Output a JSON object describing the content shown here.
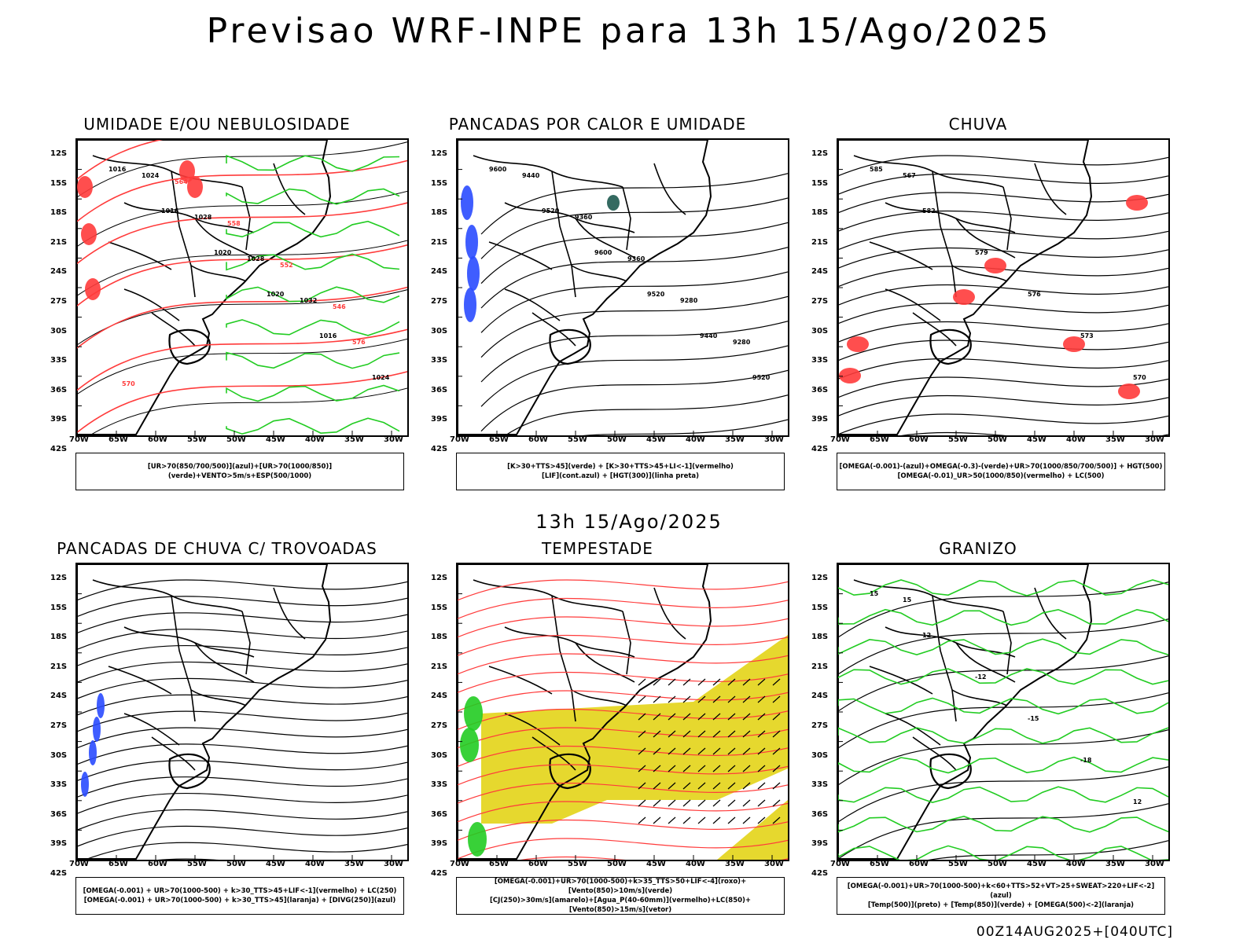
{
  "header": {
    "title": "Previsao WRF-INPE  para 13h 15/Ago/2025"
  },
  "mid_label": "13h 15/Ago/2025",
  "run_info": "00Z14AUG2025+[040UTC]",
  "axes": {
    "lat_labels": [
      "12S",
      "15S",
      "18S",
      "21S",
      "24S",
      "27S",
      "30S",
      "33S",
      "36S",
      "39S",
      "42S"
    ],
    "lon_labels": [
      "70W",
      "65W",
      "60W",
      "55W",
      "50W",
      "45W",
      "40W",
      "35W",
      "30W"
    ]
  },
  "colors": {
    "black": "#000000",
    "red": "#ff3b3b",
    "green": "#22cc22",
    "blue": "#2a4bff",
    "yellow": "#e6d82e",
    "teal": "#1e5a50"
  },
  "panels": [
    {
      "title": "UMIDADE E/OU NEBULOSIDADE",
      "legend": [
        "[UR>70(850/700/500)](azul)+[UR>70(1000/850)](verde)+VENTO>5m/s+ESP(500/1000)"
      ],
      "labels": [
        "1016",
        "1016",
        "1020",
        "1020",
        "1016",
        "1024",
        "1024",
        "1028",
        "1028",
        "1032",
        "576",
        "570",
        "564",
        "558",
        "552",
        "546"
      ]
    },
    {
      "title": "PANCADAS POR CALOR E UMIDADE",
      "legend": [
        "[K>30+TTS>45](verde) + [K>30+TTS>45+LI<-1](vermelho)",
        "[LIF](cont.azul) + [HGT(300)](linha preta)"
      ],
      "labels": [
        "9600",
        "9520",
        "9600",
        "9520",
        "9440",
        "9520",
        "9440",
        "9360",
        "9360",
        "9280",
        "9280"
      ]
    },
    {
      "title": "CHUVA",
      "legend": [
        "[OMEGA(-0.001)-(azul)+OMEGA(-0.3)-(verde)+UR>70(1000/850/700/500)] + HGT(500)",
        "[OMEGA(-0.01)_UR>50(1000/850)(vermelho) + LC(500)"
      ],
      "labels": [
        "585",
        "582",
        "579",
        "576",
        "573",
        "570",
        "567"
      ]
    },
    {
      "title": "PANCADAS DE CHUVA C/ TROVOADAS",
      "legend": [
        "[OMEGA(-0.001) + UR>70(1000-500) + k>30_TTS>45+LIF<-1](vermelho) + LC(250)",
        "[OMEGA(-0.001) + UR>70(1000-500) + k>30_TTS>45](laranja) + [DIVG(250)](azul)"
      ],
      "labels": []
    },
    {
      "title": "TEMPESTADE",
      "legend": [
        "[OMEGA(-0.001)+UR>70(1000-500)+k>35_TTS>50+LIF<-4](roxo)+[Vento(850)>10m/s](verde)",
        "[CJ(250)>30m/s](amarelo)+[Agua_P(40-60mm)](vermelho)+LC(850)+[Vento(850)>15m/s](vetor)"
      ],
      "labels": []
    },
    {
      "title": "GRANIZO",
      "legend": [
        "[OMEGA(-0.001)+UR>70(1000-500)+k<60+TTS>52+VT>25+SWEAT>220+LIF<-2](azul)",
        "[Temp(500)](preto) + [Temp(850)](verde) + [OMEGA(500)<-2](laranja)"
      ],
      "labels": [
        "15",
        "12",
        "-12",
        "-15",
        "-18",
        "12",
        "15"
      ]
    }
  ]
}
